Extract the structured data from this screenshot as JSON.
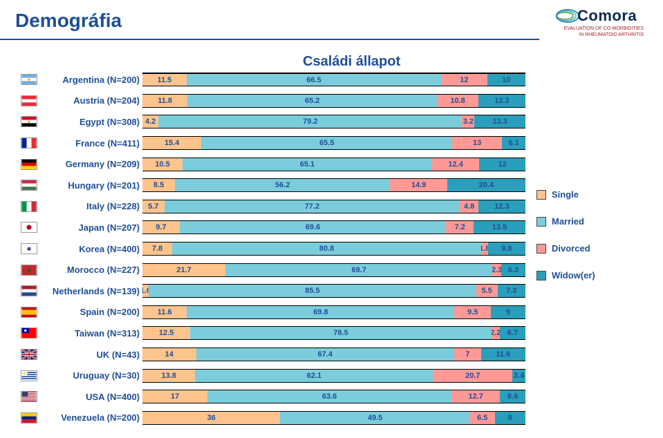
{
  "page_title": "Demográfia",
  "page_title_color": "#1f4e97",
  "underline_color": "#1f4e97",
  "chart_title": "Családi állapot",
  "chart_title_color": "#1f4e97",
  "logo": {
    "word": "Comora",
    "word_color": "#0a2a4f",
    "swoosh_colors": [
      "#6bb26b",
      "#9fc77a",
      "#39b6c0",
      "#1b6aa6"
    ],
    "sub1": "EVALUATION OF CO-MORBIDITIES",
    "sub2": "IN RHEUMATOID ARTHRITIS",
    "sub_color": "#a8212b"
  },
  "legend": [
    {
      "label": "Single",
      "color": "#fdc48d"
    },
    {
      "label": "Married",
      "color": "#7bcddc"
    },
    {
      "label": "Divorced",
      "color": "#fe9996"
    },
    {
      "label": "Widow(er)",
      "color": "#2a9fbb"
    }
  ],
  "label_color": "#1f4e97",
  "value_text_color": "#1f4e97",
  "rows": [
    {
      "label": "Argentina (N=200)",
      "flag": "ar",
      "v": [
        11.5,
        66.5,
        12,
        10
      ]
    },
    {
      "label": "Austria (N=204)",
      "flag": "at",
      "v": [
        11.8,
        65.2,
        10.8,
        12.3
      ]
    },
    {
      "label": "Egypt (N=308)",
      "flag": "eg",
      "v": [
        4.2,
        79.2,
        3.2,
        13.3
      ]
    },
    {
      "label": "France (N=411)",
      "flag": "fr",
      "v": [
        15.4,
        65.5,
        13,
        6.1
      ]
    },
    {
      "label": "Germany (N=209)",
      "flag": "de",
      "v": [
        10.5,
        65.1,
        12.4,
        12
      ]
    },
    {
      "label": "Hungary (N=201)",
      "flag": "hu",
      "v": [
        8.5,
        56.2,
        14.9,
        20.4
      ]
    },
    {
      "label": "Italy (N=228)",
      "flag": "it",
      "v": [
        5.7,
        77.2,
        4.8,
        12.3
      ]
    },
    {
      "label": "Japan (N=207)",
      "flag": "jp",
      "v": [
        9.7,
        69.6,
        7.2,
        13.5
      ]
    },
    {
      "label": "Korea (N=400)",
      "flag": "kr",
      "v": [
        7.8,
        80.8,
        1.8,
        9.8
      ]
    },
    {
      "label": "Morocco (N=227)",
      "flag": "ma",
      "v": [
        21.7,
        69.7,
        2.3,
        6.3
      ]
    },
    {
      "label": "Netherlands (N=139)",
      "flag": "nl",
      "v": [
        1.6,
        85.5,
        5.5,
        7.3
      ]
    },
    {
      "label": "Spain (N=200)",
      "flag": "es",
      "v": [
        11.6,
        69.8,
        9.5,
        9
      ]
    },
    {
      "label": "Taiwan (N=313)",
      "flag": "tw",
      "v": [
        12.5,
        78.5,
        2.2,
        6.7
      ]
    },
    {
      "label": "UK (N=43)",
      "flag": "gb",
      "v": [
        14,
        67.4,
        7,
        11.6
      ]
    },
    {
      "label": "Uruguay (N=30)",
      "flag": "uy",
      "v": [
        13.8,
        62.1,
        20.7,
        3.4
      ]
    },
    {
      "label": "USA (N=400)",
      "flag": "us",
      "v": [
        17,
        63.6,
        12.7,
        6.6
      ]
    },
    {
      "label": "Venezuela (N=200)",
      "flag": "ve",
      "v": [
        36,
        49.5,
        6.5,
        8
      ]
    }
  ]
}
